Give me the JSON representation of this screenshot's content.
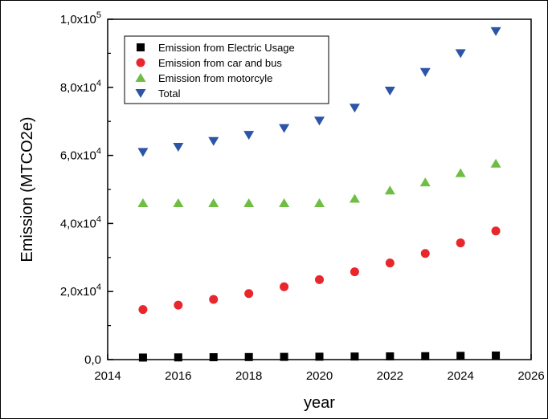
{
  "chart_data": {
    "type": "scatter",
    "xlabel": "year",
    "ylabel": "Emission (MTCO2e)",
    "xlim": [
      2014,
      2026
    ],
    "ylim": [
      0,
      100000
    ],
    "x_ticks": [
      2014,
      2016,
      2018,
      2020,
      2022,
      2024,
      2026
    ],
    "x_tick_labels": [
      "2014",
      "2016",
      "2018",
      "2020",
      "2022",
      "2024",
      "2026"
    ],
    "y_ticks": [
      0,
      20000,
      40000,
      60000,
      80000,
      100000
    ],
    "y_tick_labels": [
      {
        "mant": "0,0",
        "exp": ""
      },
      {
        "mant": "2,0x10",
        "exp": "4"
      },
      {
        "mant": "4,0x10",
        "exp": "4"
      },
      {
        "mant": "6,0x10",
        "exp": "4"
      },
      {
        "mant": "8,0x10",
        "exp": "4"
      },
      {
        "mant": "1,0x10",
        "exp": "5"
      }
    ],
    "legend_placement": "top-left",
    "grid": false,
    "x": [
      2015,
      2016,
      2017,
      2018,
      2019,
      2020,
      2021,
      2022,
      2023,
      2024,
      2025
    ],
    "series": [
      {
        "name": "Emission from Electric Usage",
        "marker": "square",
        "color": "#000000",
        "values": [
          600,
          650,
          700,
          750,
          800,
          850,
          900,
          950,
          1000,
          1100,
          1200
        ]
      },
      {
        "name": "Emission from car and bus",
        "marker": "circle",
        "color": "#e8262b",
        "values": [
          14700,
          16000,
          17700,
          19400,
          21400,
          23500,
          25800,
          28400,
          31200,
          34300,
          37800
        ]
      },
      {
        "name": "Emission from motorcyle",
        "marker": "triangle-up",
        "color": "#6fbe44",
        "values": [
          46000,
          46000,
          46000,
          46000,
          46000,
          46000,
          47300,
          49700,
          52100,
          54800,
          57600
        ]
      },
      {
        "name": "Total",
        "marker": "triangle-down",
        "color": "#2c54a7",
        "values": [
          61000,
          62500,
          64200,
          66000,
          68000,
          70200,
          74000,
          79000,
          84500,
          90000,
          96500
        ]
      }
    ]
  }
}
